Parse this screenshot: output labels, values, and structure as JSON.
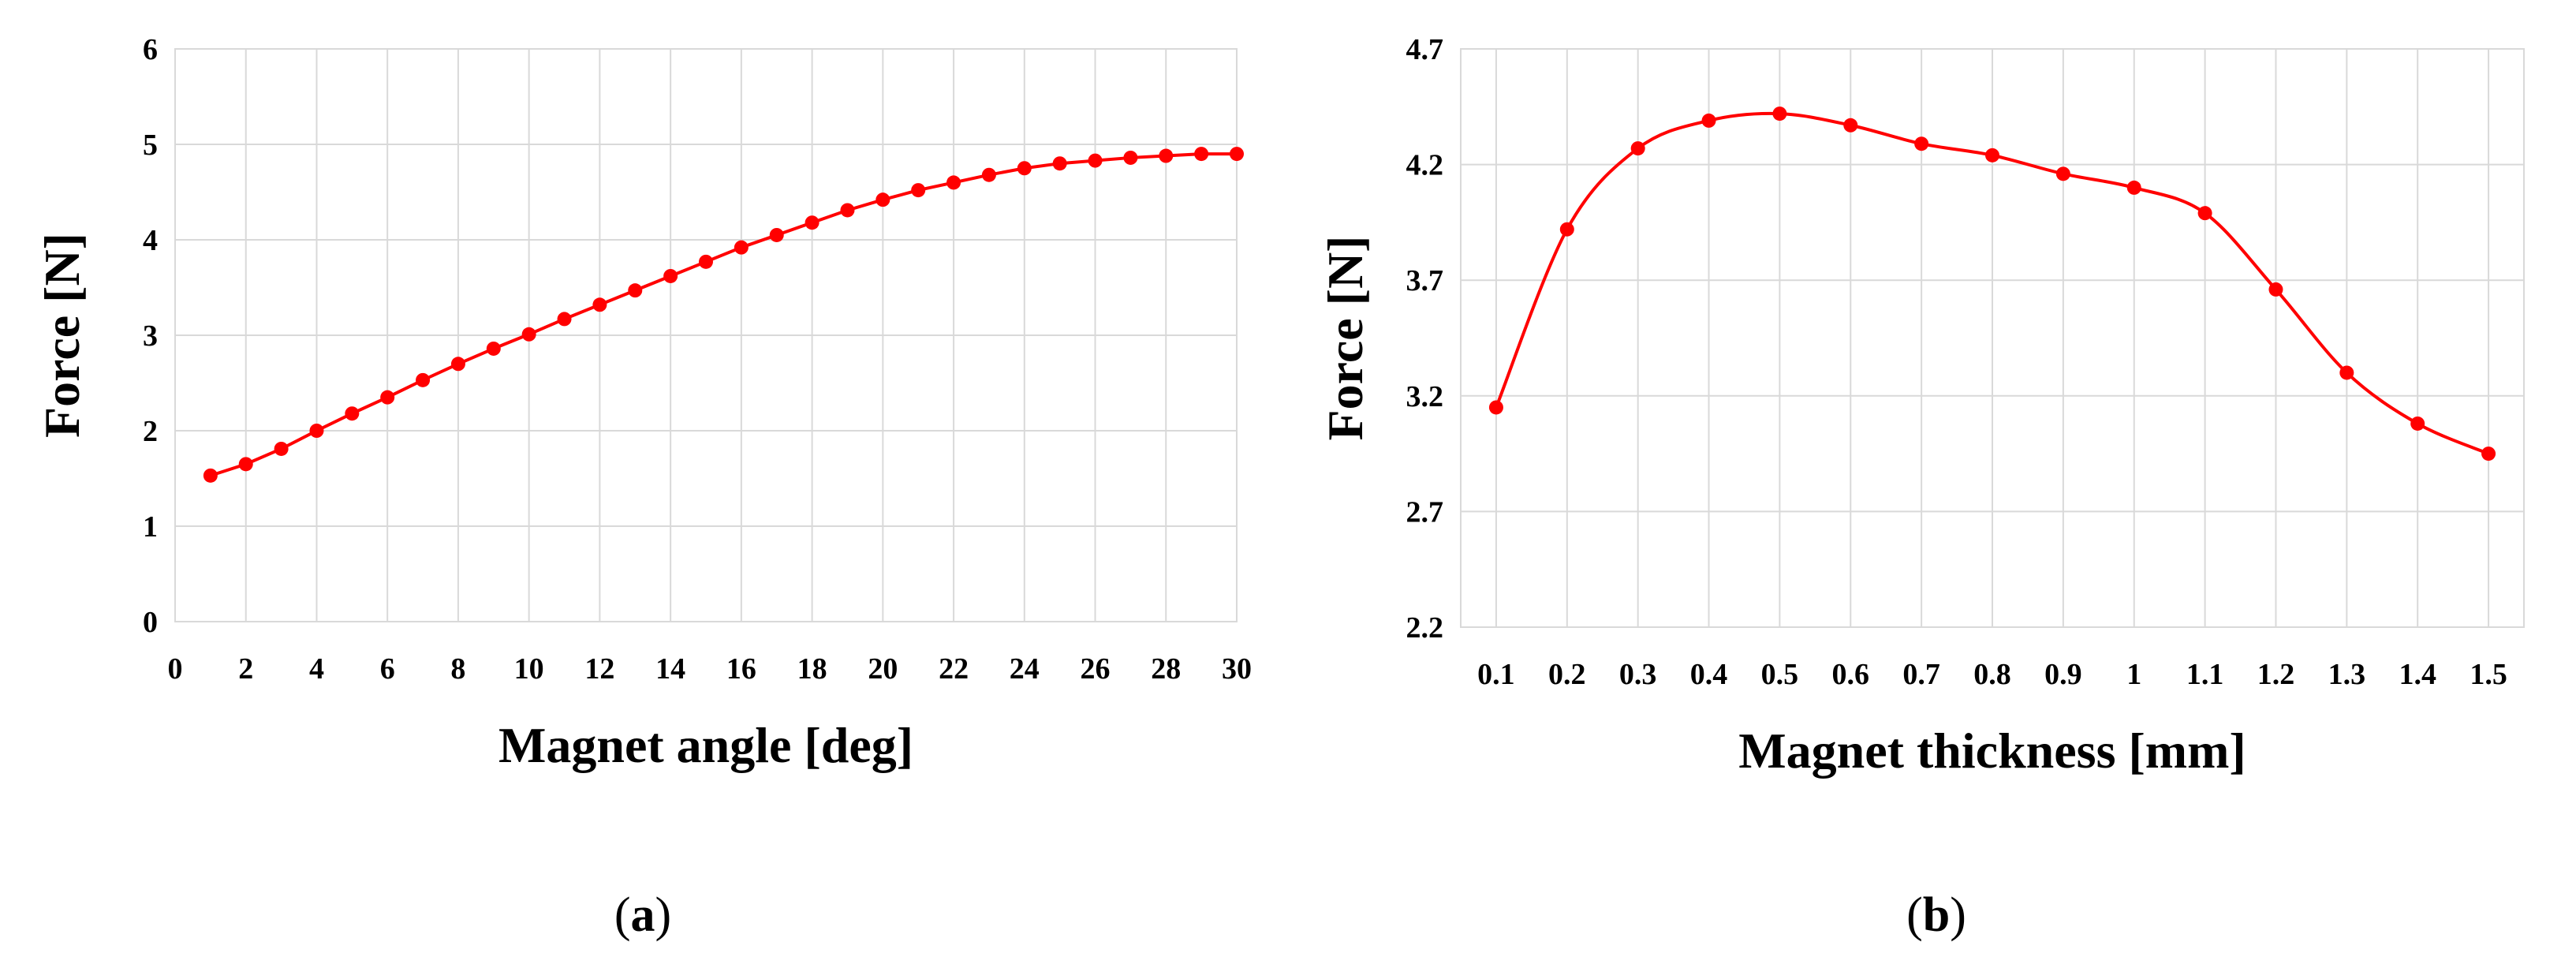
{
  "colors": {
    "series": "#ff0000",
    "grid": "#d9d9d9"
  },
  "chart_data": [
    {
      "type": "line",
      "caption_letter": "a",
      "xlabel": "Magnet angle [deg]",
      "ylabel": "Force [N]",
      "xlim": [
        0,
        30
      ],
      "ylim": [
        0,
        6
      ],
      "xticks": [
        0,
        2,
        4,
        6,
        8,
        10,
        12,
        14,
        16,
        18,
        20,
        22,
        24,
        26,
        28,
        30
      ],
      "yticks": [
        0,
        1,
        2,
        3,
        4,
        5,
        6
      ],
      "grid": true,
      "smooth": false,
      "series": [
        {
          "x": [
            1,
            2,
            3,
            4,
            5,
            6,
            7,
            8,
            9,
            10,
            11,
            12,
            13,
            14,
            15,
            16,
            17,
            18,
            19,
            20,
            21,
            22,
            23,
            24,
            25,
            26,
            27,
            28,
            29,
            30
          ],
          "values": [
            1.53,
            1.65,
            1.81,
            2.0,
            2.18,
            2.35,
            2.53,
            2.7,
            2.86,
            3.01,
            3.17,
            3.32,
            3.47,
            3.62,
            3.77,
            3.92,
            4.05,
            4.18,
            4.31,
            4.42,
            4.52,
            4.6,
            4.68,
            4.75,
            4.8,
            4.83,
            4.86,
            4.88,
            4.9,
            4.9
          ]
        }
      ]
    },
    {
      "type": "line",
      "caption_letter": "b",
      "xlabel": "Magnet thickness [mm]",
      "ylabel": "Force [N]",
      "ylim": [
        2.2,
        4.7
      ],
      "categories": [
        "0.1",
        "0.2",
        "0.3",
        "0.4",
        "0.5",
        "0.6",
        "0.7",
        "0.8",
        "0.9",
        "1",
        "1.1",
        "1.2",
        "1.3",
        "1.4",
        "1.5"
      ],
      "yticks": [
        "2.2",
        "2.7",
        "3.2",
        "3.7",
        "4.2",
        "4.7"
      ],
      "grid": true,
      "smooth": true,
      "series": [
        {
          "values": [
            3.15,
            3.92,
            4.27,
            4.39,
            4.42,
            4.37,
            4.29,
            4.24,
            4.16,
            4.1,
            3.99,
            3.66,
            3.3,
            3.08,
            2.95
          ]
        }
      ]
    }
  ]
}
